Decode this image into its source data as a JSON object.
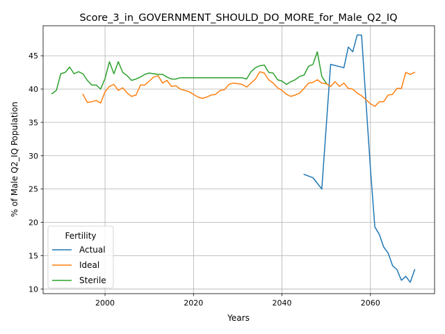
{
  "chart_data": {
    "type": "line",
    "title": "Score_3_in_GOVERNMENT_SHOULD_DO_MORE_for_Male_Q2_IQ",
    "xlabel": "Years",
    "ylabel": "% of Male Q2_IQ Population",
    "xlim": [
      1986,
      2074.5
    ],
    "ylim": [
      9.3,
      49.5
    ],
    "xticks": [
      2000,
      2020,
      2040,
      2060
    ],
    "yticks": [
      10,
      15,
      20,
      25,
      30,
      35,
      40,
      45
    ],
    "grid": true,
    "legend": {
      "title": "Fertility",
      "placement": "lower-left"
    },
    "series": [
      {
        "name": "Actual",
        "color": "#1f77b4",
        "x": [
          2045,
          2047,
          2049,
          2051,
          2054,
          2055,
          2056,
          2057,
          2058,
          2059,
          2060,
          2061,
          2062,
          2063,
          2064,
          2065,
          2066,
          2067,
          2068,
          2069,
          2070
        ],
        "y": [
          27.2,
          26.7,
          25.0,
          43.7,
          43.2,
          46.3,
          45.6,
          48.1,
          48.1,
          38.0,
          28.0,
          19.3,
          18.2,
          16.3,
          15.4,
          13.5,
          12.9,
          11.3,
          11.9,
          11.0,
          12.9
        ]
      },
      {
        "name": "Ideal",
        "color": "#ff7f0e",
        "x": [
          1995,
          1996,
          1997,
          1998,
          1999,
          2000,
          2001,
          2002,
          2003,
          2004,
          2005,
          2006,
          2007,
          2008,
          2009,
          2010,
          2011,
          2012,
          2013,
          2014,
          2015,
          2016,
          2017,
          2018,
          2019,
          2020,
          2021,
          2022,
          2023,
          2024,
          2025,
          2026,
          2027,
          2028,
          2029,
          2030,
          2031,
          2032,
          2033,
          2034,
          2035,
          2036,
          2037,
          2038,
          2039,
          2040,
          2041,
          2042,
          2043,
          2044,
          2045,
          2046,
          2047,
          2048,
          2049,
          2050,
          2051,
          2052,
          2053,
          2054,
          2055,
          2056,
          2057,
          2058,
          2059,
          2060,
          2061,
          2062,
          2063,
          2064,
          2065,
          2066,
          2067,
          2068,
          2069,
          2070
        ],
        "y": [
          39.2,
          38.0,
          38.1,
          38.3,
          37.9,
          39.6,
          40.4,
          40.7,
          39.8,
          40.2,
          39.4,
          38.9,
          39.1,
          40.6,
          40.6,
          41.2,
          41.8,
          42.0,
          40.9,
          41.3,
          40.4,
          40.5,
          40.0,
          39.8,
          39.6,
          39.2,
          38.8,
          38.6,
          38.8,
          39.1,
          39.2,
          39.8,
          39.9,
          40.7,
          40.9,
          40.8,
          40.7,
          40.3,
          40.9,
          41.5,
          42.6,
          42.4,
          41.4,
          40.9,
          40.2,
          39.8,
          39.2,
          38.9,
          39.1,
          39.4,
          40.1,
          40.9,
          41.0,
          41.4,
          40.9,
          40.8,
          40.4,
          41.1,
          40.4,
          40.9,
          40.1,
          40.0,
          39.4,
          39.0,
          38.4,
          37.8,
          37.4,
          38.1,
          38.1,
          39.1,
          39.2,
          40.1,
          40.1,
          42.5,
          42.2,
          42.5
        ]
      },
      {
        "name": "Sterile",
        "color": "#2ca02c",
        "x": [
          1988,
          1989,
          1990,
          1991,
          1992,
          1993,
          1994,
          1995,
          1996,
          1997,
          1998,
          1999,
          2000,
          2001,
          2002,
          2003,
          2004,
          2005,
          2006,
          2007,
          2008,
          2009,
          2010,
          2011,
          2012,
          2013,
          2014,
          2015,
          2016,
          2017,
          2018,
          2019,
          2020,
          2021,
          2022,
          2023,
          2024,
          2025,
          2026,
          2027,
          2028,
          2029,
          2030,
          2031,
          2032,
          2033,
          2034,
          2035,
          2036,
          2037,
          2038,
          2039,
          2040,
          2041,
          2042,
          2043,
          2044,
          2045,
          2046,
          2047,
          2048,
          2049,
          2050
        ],
        "y": [
          39.3,
          39.8,
          42.3,
          42.5,
          43.3,
          42.3,
          42.6,
          42.3,
          41.3,
          40.6,
          40.6,
          40.0,
          41.6,
          44.1,
          42.3,
          44.1,
          42.5,
          42.0,
          41.3,
          41.5,
          41.8,
          42.2,
          42.4,
          42.3,
          42.2,
          42.2,
          41.8,
          41.5,
          41.5,
          41.7,
          41.7,
          41.7,
          41.7,
          41.7,
          41.7,
          41.7,
          41.7,
          41.7,
          41.7,
          41.7,
          41.7,
          41.7,
          41.7,
          41.7,
          41.5,
          42.6,
          43.2,
          43.5,
          43.6,
          42.5,
          42.4,
          41.4,
          41.2,
          40.7,
          41.1,
          41.4,
          41.9,
          42.1,
          43.4,
          43.7,
          45.6,
          41.9,
          40.9
        ]
      }
    ]
  }
}
